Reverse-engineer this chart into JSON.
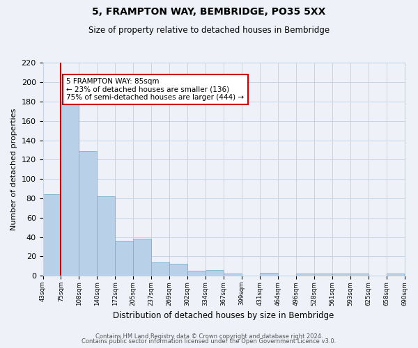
{
  "title": "5, FRAMPTON WAY, BEMBRIDGE, PO35 5XX",
  "subtitle": "Size of property relative to detached houses in Bembridge",
  "bar_values": [
    84,
    180,
    129,
    82,
    36,
    38,
    14,
    12,
    5,
    6,
    2,
    0,
    3,
    0,
    2,
    2,
    2,
    2,
    0,
    2
  ],
  "bin_labels": [
    "43sqm",
    "75sqm",
    "108sqm",
    "140sqm",
    "172sqm",
    "205sqm",
    "237sqm",
    "269sqm",
    "302sqm",
    "334sqm",
    "367sqm",
    "399sqm",
    "431sqm",
    "464sqm",
    "496sqm",
    "528sqm",
    "561sqm",
    "593sqm",
    "625sqm",
    "658sqm",
    "690sqm"
  ],
  "bar_color": "#b8d0e8",
  "bar_edge_color": "#7aafd4",
  "vline_color": "#cc0000",
  "ylabel": "Number of detached properties",
  "xlabel": "Distribution of detached houses by size in Bembridge",
  "ylim": [
    0,
    220
  ],
  "yticks": [
    0,
    20,
    40,
    60,
    80,
    100,
    120,
    140,
    160,
    180,
    200,
    220
  ],
  "annotation_title": "5 FRAMPTON WAY: 85sqm",
  "annotation_line1": "← 23% of detached houses are smaller (136)",
  "annotation_line2": "75% of semi-detached houses are larger (444) →",
  "footer1": "Contains HM Land Registry data © Crown copyright and database right 2024.",
  "footer2": "Contains public sector information licensed under the Open Government Licence v3.0.",
  "background_color": "#eef2f8",
  "grid_color": "#c5d5e5"
}
